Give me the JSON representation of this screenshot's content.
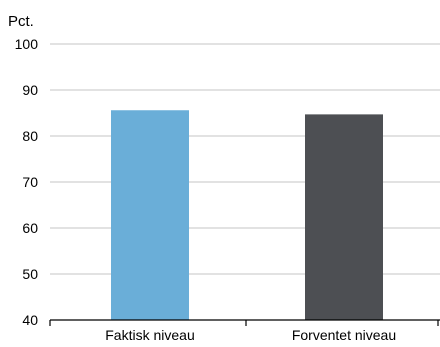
{
  "chart_data": {
    "type": "bar",
    "unit_label": "Pct.",
    "categories": [
      "Faktisk niveau",
      "Forventet niveau"
    ],
    "values": [
      85.6,
      84.7
    ],
    "colors": [
      "#6aaed8",
      "#4d4f53"
    ],
    "ylim": [
      40,
      100
    ],
    "yticks": [
      40,
      50,
      60,
      70,
      80,
      90,
      100
    ],
    "grid": true,
    "legend": "none"
  }
}
